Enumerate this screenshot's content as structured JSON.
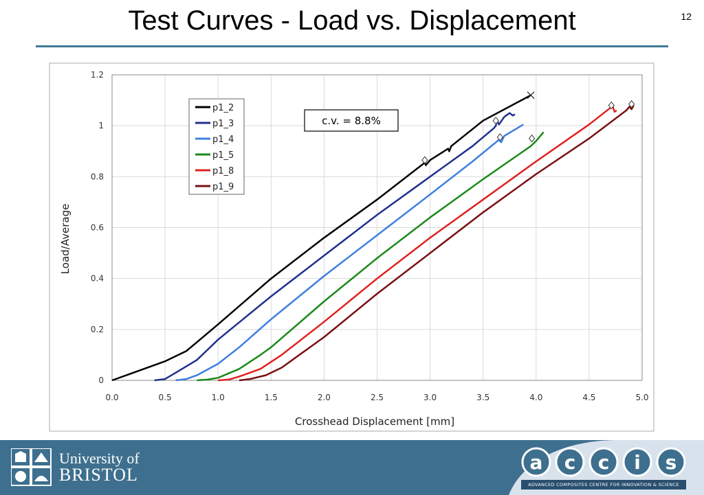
{
  "slide": {
    "title": "Test Curves - Load vs. Displacement",
    "number": "12"
  },
  "annotation": {
    "text": "c.v. = 8.8%"
  },
  "footer": {
    "university_line1": "University of",
    "university_line2": "BRISTOL",
    "accis_letters": [
      "a",
      "c",
      "c",
      "i",
      "s"
    ],
    "accis_tagline": "ADVANCED COMPOSITES CENTRE FOR INNOVATION & SCIENCE",
    "accent_color": "#3e6f8e"
  },
  "chart_data": {
    "type": "line",
    "title": "",
    "xlabel": "Crosshead Displacement [mm]",
    "ylabel": "Load/Average",
    "xlim": [
      0,
      5
    ],
    "ylim": [
      0,
      1.2
    ],
    "x_ticks": [
      "0.0",
      "0.5",
      "1.0",
      "1.5",
      "2.0",
      "2.5",
      "3.0",
      "3.5",
      "4.0",
      "4.5",
      "5.0"
    ],
    "y_ticks": [
      "0",
      "0.2",
      "0.4",
      "0.6",
      "0.8",
      "1",
      "1.2"
    ],
    "grid": true,
    "legend_position": "top-left",
    "series": [
      {
        "name": "p1_2",
        "color": "#000000",
        "points": [
          [
            0.0,
            0.0
          ],
          [
            0.2,
            0.03
          ],
          [
            0.5,
            0.075
          ],
          [
            0.7,
            0.115
          ],
          [
            0.8,
            0.15
          ],
          [
            1.0,
            0.22
          ],
          [
            1.5,
            0.4
          ],
          [
            2.0,
            0.56
          ],
          [
            2.5,
            0.71
          ],
          [
            2.95,
            0.855
          ],
          [
            2.96,
            0.845
          ],
          [
            3.0,
            0.865
          ],
          [
            3.17,
            0.91
          ],
          [
            3.18,
            0.9
          ],
          [
            3.2,
            0.92
          ],
          [
            3.5,
            1.02
          ],
          [
            3.95,
            1.12
          ]
        ],
        "markers": [
          {
            "x": 2.95,
            "y": 0.865,
            "shape": "diamond"
          },
          {
            "x": 3.95,
            "y": 1.12,
            "shape": "cross"
          }
        ]
      },
      {
        "name": "p1_3",
        "color": "#1f2f8f",
        "points": [
          [
            0.4,
            0.0
          ],
          [
            0.5,
            0.005
          ],
          [
            0.6,
            0.03
          ],
          [
            0.8,
            0.08
          ],
          [
            1.0,
            0.16
          ],
          [
            1.5,
            0.33
          ],
          [
            2.0,
            0.49
          ],
          [
            2.5,
            0.65
          ],
          [
            3.0,
            0.8
          ],
          [
            3.4,
            0.92
          ],
          [
            3.6,
            0.99
          ],
          [
            3.62,
            1.0
          ],
          [
            3.63,
            1.02
          ],
          [
            3.65,
            1.005
          ],
          [
            3.7,
            1.035
          ],
          [
            3.75,
            1.05
          ],
          [
            3.78,
            1.04
          ],
          [
            3.8,
            1.045
          ]
        ],
        "markers": [
          {
            "x": 3.62,
            "y": 1.02,
            "shape": "diamond"
          }
        ]
      },
      {
        "name": "p1_4",
        "color": "#3f7fe0",
        "points": [
          [
            0.6,
            0.0
          ],
          [
            0.7,
            0.005
          ],
          [
            0.8,
            0.02
          ],
          [
            1.0,
            0.065
          ],
          [
            1.2,
            0.13
          ],
          [
            1.5,
            0.24
          ],
          [
            2.0,
            0.41
          ],
          [
            2.5,
            0.57
          ],
          [
            3.0,
            0.73
          ],
          [
            3.4,
            0.86
          ],
          [
            3.65,
            0.945
          ],
          [
            3.67,
            0.935
          ],
          [
            3.7,
            0.96
          ],
          [
            3.88,
            1.005
          ]
        ],
        "markers": [
          {
            "x": 3.66,
            "y": 0.955,
            "shape": "diamond"
          }
        ]
      },
      {
        "name": "p1_5",
        "color": "#1a8a1a",
        "points": [
          [
            0.8,
            0.0
          ],
          [
            0.9,
            0.003
          ],
          [
            1.0,
            0.01
          ],
          [
            1.2,
            0.045
          ],
          [
            1.4,
            0.1
          ],
          [
            1.5,
            0.13
          ],
          [
            2.0,
            0.31
          ],
          [
            2.5,
            0.48
          ],
          [
            3.0,
            0.64
          ],
          [
            3.5,
            0.79
          ],
          [
            3.95,
            0.92
          ],
          [
            4.0,
            0.94
          ],
          [
            4.07,
            0.975
          ]
        ],
        "markers": [
          {
            "x": 3.96,
            "y": 0.95,
            "shape": "diamond"
          }
        ]
      },
      {
        "name": "p1_8",
        "color": "#e02020",
        "points": [
          [
            1.0,
            0.0
          ],
          [
            1.1,
            0.003
          ],
          [
            1.2,
            0.015
          ],
          [
            1.4,
            0.045
          ],
          [
            1.6,
            0.1
          ],
          [
            2.0,
            0.23
          ],
          [
            2.5,
            0.4
          ],
          [
            3.0,
            0.56
          ],
          [
            3.5,
            0.71
          ],
          [
            4.0,
            0.86
          ],
          [
            4.5,
            1.005
          ],
          [
            4.7,
            1.07
          ],
          [
            4.72,
            1.08
          ],
          [
            4.74,
            1.055
          ],
          [
            4.76,
            1.06
          ]
        ],
        "markers": [
          {
            "x": 4.71,
            "y": 1.08,
            "shape": "diamond"
          }
        ]
      },
      {
        "name": "p1_9",
        "color": "#7a1010",
        "points": [
          [
            1.2,
            0.0
          ],
          [
            1.3,
            0.005
          ],
          [
            1.45,
            0.02
          ],
          [
            1.6,
            0.05
          ],
          [
            1.8,
            0.11
          ],
          [
            2.0,
            0.17
          ],
          [
            2.5,
            0.34
          ],
          [
            3.0,
            0.5
          ],
          [
            3.5,
            0.66
          ],
          [
            4.0,
            0.81
          ],
          [
            4.5,
            0.95
          ],
          [
            4.85,
            1.06
          ],
          [
            4.88,
            1.075
          ],
          [
            4.9,
            1.065
          ],
          [
            4.92,
            1.08
          ]
        ],
        "markers": [
          {
            "x": 4.9,
            "y": 1.085,
            "shape": "diamond"
          }
        ]
      }
    ]
  }
}
